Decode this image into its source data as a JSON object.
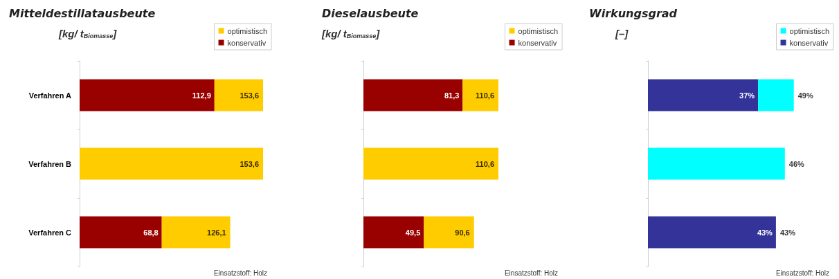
{
  "chart_data": [
    {
      "type": "bar",
      "orientation": "horizontal",
      "stacked": true,
      "title": "Mitteldestillatausbeute",
      "subtitle": "[kg/ t$_{Biomasse}$]",
      "categories": [
        "Verfahren A",
        "Verfahren B",
        "Verfahren C"
      ],
      "tick_labels": "y",
      "legend": "top right",
      "annotations": [
        "Einsatzstoff: Holz"
      ],
      "series": [
        {
          "name": "konservativ",
          "color": "#990000",
          "values": [
            112.9,
            null,
            68.8
          ],
          "value_labels": [
            "112,9",
            null,
            "68,8"
          ]
        },
        {
          "name": "optimistisch",
          "color": "#ffcc00",
          "values": [
            40.7,
            153.6,
            57.3
          ]
        }
      ],
      "totals": [
        "153,6",
        "153,6",
        "126,1"
      ]
    },
    {
      "type": "bar",
      "orientation": "horizontal",
      "stacked": true,
      "title": "Dieselausbeute",
      "subtitle": "[kg/ t$_{Biomasse}$]",
      "categories": [
        null,
        null,
        null
      ],
      "tick_labels": false,
      "legend": "top right",
      "annotations": [
        "Einsatzstoff: Holz"
      ],
      "series": [
        {
          "name": "konservativ",
          "color": "#990000",
          "values": [
            81.3,
            null,
            49.5
          ],
          "value_labels": [
            "81,3",
            null,
            "49,5"
          ]
        },
        {
          "name": "optimistisch",
          "color": "#ffcc00",
          "values": [
            29.3,
            110.6,
            41.1
          ]
        }
      ],
      "totals": [
        "110,6",
        "110,6",
        "90,6"
      ]
    },
    {
      "type": "bar",
      "orientation": "horizontal",
      "stacked": true,
      "title": "Wirkungsgrad",
      "subtitle": "[–]",
      "categories": [
        null,
        null,
        null
      ],
      "tick_labels": false,
      "legend": "top right",
      "annotations": [
        "Einsatzstoff: Holz"
      ],
      "series": [
        {
          "name": "konservativ",
          "color": "#333399",
          "values": [
            37,
            null,
            43
          ],
          "value_labels": [
            "37%",
            null,
            "43%"
          ]
        },
        {
          "name": "optimistisch",
          "color": "#00ffff",
          "values": [
            12,
            46,
            null
          ]
        }
      ],
      "totals": [
        "49%",
        "46%",
        "43%"
      ]
    }
  ]
}
